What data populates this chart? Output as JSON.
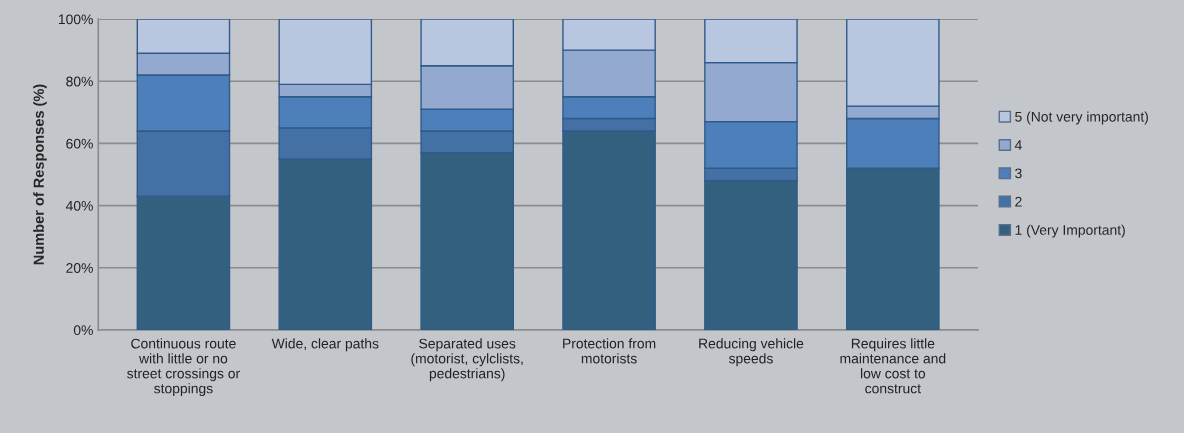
{
  "chart_data": {
    "type": "bar",
    "stacked": true,
    "ylabel": "Number of Responses (%)",
    "categories": [
      "Continuous route\nwith little or no\nstreet crossings or\nstoppings",
      "Wide, clear paths",
      "Separated uses\n(motorist, cylclists,\npedestrians)",
      "Protection from\nmotorists",
      "Reducing vehicle\nspeeds",
      "Requires little\nmaintenance and\nlow cost to\nconstruct"
    ],
    "series": [
      {
        "name": "1 (Very Important)",
        "color": "#34607f",
        "values": [
          43,
          55,
          57,
          64,
          48,
          52
        ]
      },
      {
        "name": "2",
        "color": "#4471a5",
        "values": [
          21,
          10,
          7,
          4,
          4,
          0
        ]
      },
      {
        "name": "3",
        "color": "#4d7fbb",
        "values": [
          18,
          10,
          7,
          7,
          15,
          16
        ]
      },
      {
        "name": "4",
        "color": "#94a9d0",
        "values": [
          7,
          4,
          14,
          15,
          19,
          4
        ]
      },
      {
        "name": "5 (Not very important)",
        "color": "#b9c6df",
        "values": [
          11,
          21,
          15,
          10,
          14,
          28
        ]
      }
    ],
    "ylim": [
      0,
      100
    ],
    "yticks": [
      {
        "value": 0,
        "label": "0%"
      },
      {
        "value": 20,
        "label": "20%"
      },
      {
        "value": 40,
        "label": "40%"
      },
      {
        "value": 60,
        "label": "60%"
      },
      {
        "value": 80,
        "label": "80%"
      },
      {
        "value": 100,
        "label": "100%"
      }
    ],
    "grid": "y",
    "legend": "right"
  }
}
